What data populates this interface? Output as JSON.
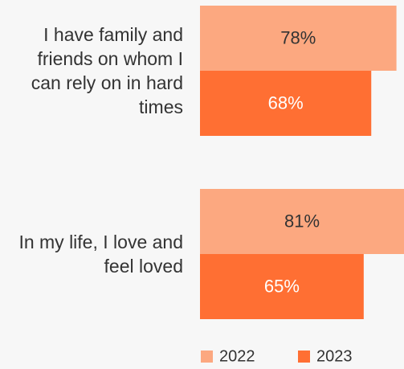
{
  "chart_data": {
    "type": "bar",
    "orientation": "horizontal",
    "categories": [
      "I have family and friends on whom I can rely on in hard times",
      "In my life, I love and feel loved"
    ],
    "series": [
      {
        "name": "2022",
        "color": "#fca880",
        "values": [
          78,
          81
        ],
        "value_labels": [
          "78%",
          "81%"
        ]
      },
      {
        "name": "2023",
        "color": "#ff6f33",
        "values": [
          68,
          65
        ],
        "value_labels": [
          "68%",
          "65%"
        ]
      }
    ],
    "xlim": [
      0,
      81
    ],
    "legend": "bottom"
  }
}
